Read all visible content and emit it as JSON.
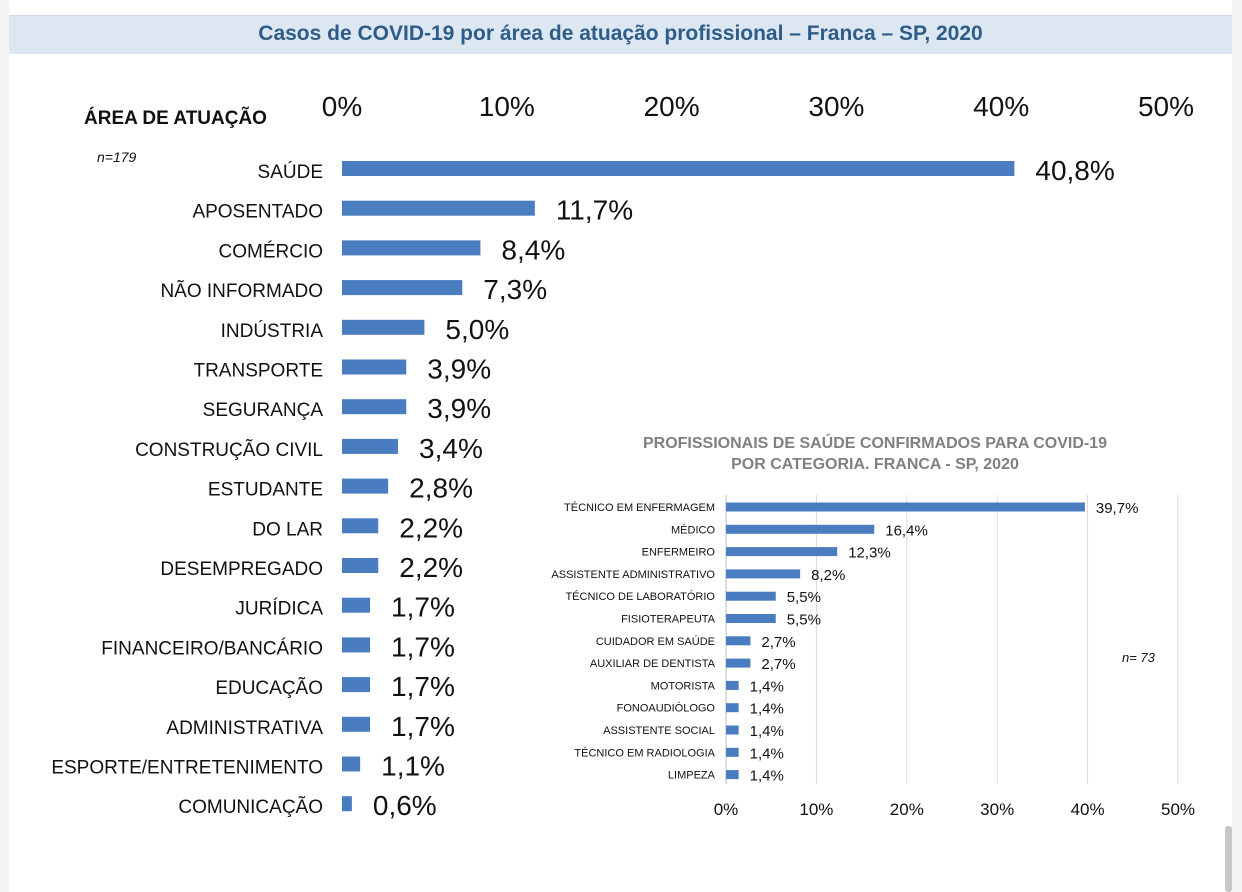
{
  "header": {
    "title": "Casos de COVID-19 por área de atuação profissional – Franca – SP, 2020"
  },
  "colors": {
    "bar": "#4a7cc0",
    "title": "#2e5c88",
    "title_bg": "#dde7f1",
    "grid": "#d9d9d9",
    "inset_title": "#808080"
  },
  "chart_data": [
    {
      "type": "bar",
      "orientation": "horizontal",
      "title": "Casos de COVID-19 por área de atuação profissional – Franca – SP, 2020",
      "category_header": "ÁREA DE ATUAÇÃO",
      "n_label": "n=179",
      "xlim": [
        0,
        50
      ],
      "x_ticks": [
        "0%",
        "10%",
        "20%",
        "30%",
        "40%",
        "50%"
      ],
      "axis_position": "top",
      "grid": false,
      "categories": [
        "SAÚDE",
        "APOSENTADO",
        "COMÉRCIO",
        "NÃO INFORMADO",
        "INDÚSTRIA",
        "TRANSPORTE",
        "SEGURANÇA",
        "CONSTRUÇÃO CIVIL",
        "ESTUDANTE",
        "DO LAR",
        "DESEMPREGADO",
        "JURÍDICA",
        "FINANCEIRO/BANCÁRIO",
        "EDUCAÇÃO",
        "ADMINISTRATIVA",
        "ESPORTE/ENTRETENIMENTO",
        "COMUNICAÇÃO"
      ],
      "values": [
        40.8,
        11.7,
        8.4,
        7.3,
        5.0,
        3.9,
        3.9,
        3.4,
        2.8,
        2.2,
        2.2,
        1.7,
        1.7,
        1.7,
        1.7,
        1.1,
        0.6
      ],
      "value_labels": [
        "40,8%",
        "11,7%",
        "8,4%",
        "7,3%",
        "5,0%",
        "3,9%",
        "3,9%",
        "3,4%",
        "2,8%",
        "2,2%",
        "2,2%",
        "1,7%",
        "1,7%",
        "1,7%",
        "1,7%",
        "1,1%",
        "0,6%"
      ]
    },
    {
      "type": "bar",
      "orientation": "horizontal",
      "title_lines": [
        "PROFISSIONAIS DE SAÚDE CONFIRMADOS PARA COVID-19",
        "POR CATEGORIA.  FRANCA - SP, 2020"
      ],
      "n_label": "n= 73",
      "xlim": [
        0,
        50
      ],
      "x_ticks": [
        "0%",
        "10%",
        "20%",
        "30%",
        "40%",
        "50%"
      ],
      "axis_position": "bottom",
      "grid": true,
      "categories": [
        "TÉCNICO EM ENFERMAGEM",
        "MÉDICO",
        "ENFERMEIRO",
        "ASSISTENTE ADMINISTRATIVO",
        "TÉCNICO DE LABORATÓRIO",
        "FISIOTERAPEUTA",
        "CUIDADOR EM SAÚDE",
        "AUXILIAR DE DENTISTA",
        "MOTORISTA",
        "FONOAUDIÓLOGO",
        "ASSISTENTE SOCIAL",
        "TÉCNICO EM RADIOLOGIA",
        "LIMPEZA"
      ],
      "values": [
        39.7,
        16.4,
        12.3,
        8.2,
        5.5,
        5.5,
        2.7,
        2.7,
        1.4,
        1.4,
        1.4,
        1.4,
        1.4
      ],
      "value_labels": [
        "39,7%",
        "16,4%",
        "12,3%",
        "8,2%",
        "5,5%",
        "5,5%",
        "2,7%",
        "2,7%",
        "1,4%",
        "1,4%",
        "1,4%",
        "1,4%",
        "1,4%"
      ]
    }
  ]
}
